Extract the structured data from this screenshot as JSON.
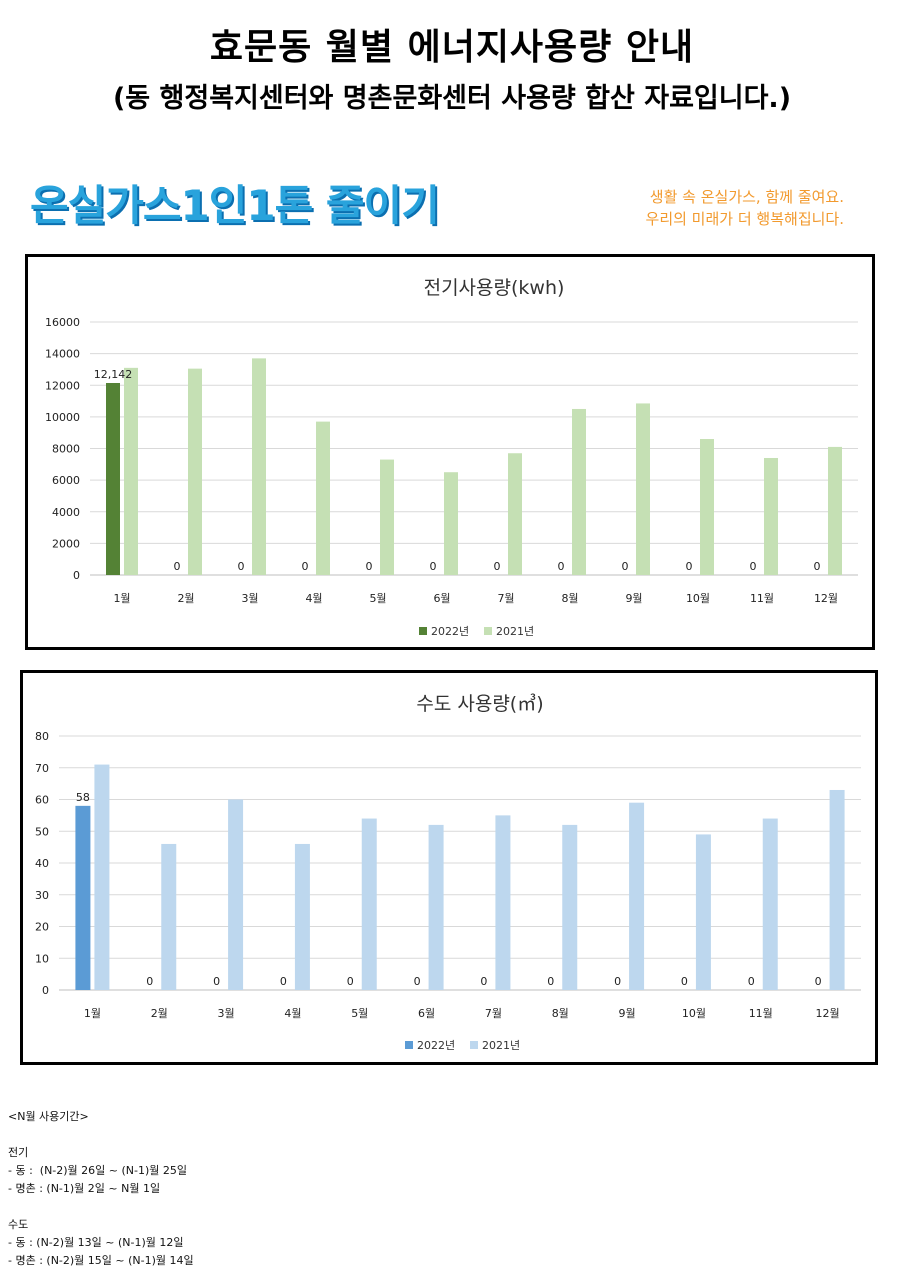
{
  "header": {
    "title": "효문동 월별 에너지사용량 안내",
    "subtitle": "(동 행정복지센터와 명촌문화센터 사용량 합산 자료입니다.)"
  },
  "banner": {
    "logo_text": "온실가스1인1톤 줄이기",
    "slogan_line1": "생활 속 온실가스, 함께 줄여요.",
    "slogan_line2": "우리의 미래가 더 행복해집니다."
  },
  "colors": {
    "elec_2022": "#548235",
    "elec_2021": "#c5e0b4",
    "water_2022": "#5b9bd5",
    "water_2021": "#bdd7ee",
    "grid": "#d9d9d9"
  },
  "chart_data": [
    {
      "type": "bar",
      "title": "전기사용량(kwh)",
      "categories": [
        "1월",
        "2월",
        "3월",
        "4월",
        "5월",
        "6월",
        "7월",
        "8월",
        "9월",
        "10월",
        "11월",
        "12월"
      ],
      "series": [
        {
          "name": "2022년",
          "values": [
            12142,
            0,
            0,
            0,
            0,
            0,
            0,
            0,
            0,
            0,
            0,
            0
          ],
          "labels": [
            "12,142",
            "0",
            "0",
            "0",
            "0",
            "0",
            "0",
            "0",
            "0",
            "0",
            "0",
            "0"
          ]
        },
        {
          "name": "2021년",
          "values": [
            13100,
            13050,
            13700,
            9700,
            7300,
            6500,
            7700,
            10500,
            10850,
            8600,
            7400,
            8100
          ]
        }
      ],
      "yticks": [
        "0",
        "2000",
        "4000",
        "6000",
        "8000",
        "10000",
        "12000",
        "14000",
        "16000"
      ],
      "ylim": [
        0,
        16000
      ],
      "legend": "bottom",
      "grid": true
    },
    {
      "type": "bar",
      "title": "수도 사용량(㎥)",
      "categories": [
        "1월",
        "2월",
        "3월",
        "4월",
        "5월",
        "6월",
        "7월",
        "8월",
        "9월",
        "10월",
        "11월",
        "12월"
      ],
      "series": [
        {
          "name": "2022년",
          "values": [
            58,
            0,
            0,
            0,
            0,
            0,
            0,
            0,
            0,
            0,
            0,
            0
          ],
          "labels": [
            "58",
            "0",
            "0",
            "0",
            "0",
            "0",
            "0",
            "0",
            "0",
            "0",
            "0",
            "0"
          ]
        },
        {
          "name": "2021년",
          "values": [
            71,
            46,
            60,
            46,
            54,
            52,
            55,
            52,
            59,
            49,
            54,
            63
          ]
        }
      ],
      "yticks": [
        "0",
        "10",
        "20",
        "30",
        "40",
        "50",
        "60",
        "70",
        "80"
      ],
      "ylim": [
        0,
        80
      ],
      "legend": "bottom",
      "grid": true
    }
  ],
  "notes": {
    "period_title": "<N월 사용기간>",
    "elec_title": "전기",
    "elec_line1": "- 동 :  (N-2)월 26일 ~ (N-1)월 25일",
    "elec_line2": "- 명촌 : (N-1)월 2일 ~ N월 1일",
    "water_title": "수도",
    "water_line1": "- 동 : (N-2)월 13일 ~ (N-1)월 12일",
    "water_line2": "- 명촌 : (N-2)월 15일 ~ (N-1)월 14일"
  }
}
